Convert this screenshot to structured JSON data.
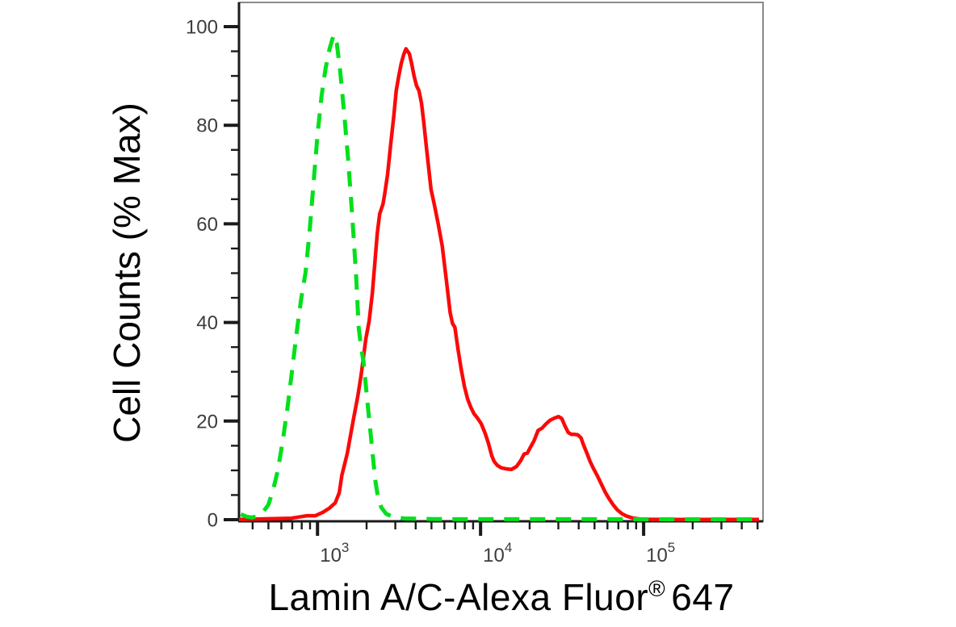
{
  "figure": {
    "background": "#ffffff"
  },
  "colors": {
    "axis": "#1b1b1b",
    "box_border": "#8a8a8a",
    "tick_label": "#3c3c3c",
    "title_text": "#000000",
    "red_series": "#FB0909",
    "green_series": "#00E01C"
  },
  "chart_data": {
    "type": "line",
    "subtype": "flow-cytometry-overlay-histogram",
    "title": "",
    "xlabel": {
      "pre": "Lamin A/C-Alexa Fluor",
      "sup": "®",
      "post": "647"
    },
    "ylabel": "Cell Counts (% Max)",
    "grid": false,
    "legend": false,
    "x_axis": {
      "scale": "log10",
      "min": 330,
      "max": 540000,
      "major_ticks": [
        {
          "value": 1000,
          "label_base": "10",
          "label_exp": "3"
        },
        {
          "value": 10000,
          "label_base": "10",
          "label_exp": "4"
        },
        {
          "value": 100000,
          "label_base": "10",
          "label_exp": "5"
        }
      ],
      "minor_tick_multiples": [
        2,
        3,
        4,
        5,
        6,
        7,
        8,
        9
      ]
    },
    "y_axis": {
      "min": 0,
      "max": 100,
      "major_ticks": [
        0,
        20,
        40,
        60,
        80,
        100
      ],
      "minor_tick_step": 5
    },
    "series": [
      {
        "name": "red-solid-lamin-ac-stained",
        "color": "#FB0909",
        "line_style": "solid",
        "line_width": 4.5,
        "points": [
          [
            330,
            0.05
          ],
          [
            690,
            0.3
          ],
          [
            790,
            0.6
          ],
          [
            860,
            0.8
          ],
          [
            970,
            0.8
          ],
          [
            1080,
            1.5
          ],
          [
            1180,
            2.3
          ],
          [
            1285,
            3.4
          ],
          [
            1360,
            5.5
          ],
          [
            1410,
            9
          ],
          [
            1525,
            13.5
          ],
          [
            1650,
            19.8
          ],
          [
            1770,
            25.2
          ],
          [
            1850,
            29.3
          ],
          [
            1915,
            33
          ],
          [
            1980,
            36.7
          ],
          [
            2075,
            40.3
          ],
          [
            2170,
            46
          ],
          [
            2245,
            52
          ],
          [
            2325,
            58
          ],
          [
            2405,
            62
          ],
          [
            2520,
            64
          ],
          [
            2580,
            66
          ],
          [
            2690,
            70
          ],
          [
            2810,
            76
          ],
          [
            2940,
            82
          ],
          [
            3040,
            87
          ],
          [
            3150,
            90
          ],
          [
            3260,
            92.5
          ],
          [
            3375,
            94.3
          ],
          [
            3490,
            95.5
          ],
          [
            3660,
            94.5
          ],
          [
            3780,
            92.5
          ],
          [
            3910,
            90
          ],
          [
            4050,
            88
          ],
          [
            4190,
            87
          ],
          [
            4340,
            84.5
          ],
          [
            4490,
            80.5
          ],
          [
            4640,
            76
          ],
          [
            4800,
            71.5
          ],
          [
            4970,
            67
          ],
          [
            5200,
            64
          ],
          [
            5500,
            60
          ],
          [
            5820,
            55.5
          ],
          [
            6150,
            49
          ],
          [
            6510,
            42
          ],
          [
            6730,
            39.8
          ],
          [
            6960,
            39
          ],
          [
            7280,
            34.5
          ],
          [
            7610,
            30.5
          ],
          [
            7960,
            27
          ],
          [
            8330,
            24.5
          ],
          [
            8710,
            22.8
          ],
          [
            9110,
            21.5
          ],
          [
            9530,
            20.7
          ],
          [
            10080,
            19.5
          ],
          [
            10670,
            17.5
          ],
          [
            11180,
            15.5
          ],
          [
            11710,
            13
          ],
          [
            12120,
            11.8
          ],
          [
            12690,
            11
          ],
          [
            13420,
            10.5
          ],
          [
            14420,
            10.3
          ],
          [
            15490,
            10.2
          ],
          [
            16640,
            10.8
          ],
          [
            17650,
            12
          ],
          [
            18490,
            13.3
          ],
          [
            19370,
            13.5
          ],
          [
            20300,
            14.8
          ],
          [
            21270,
            16
          ],
          [
            22530,
            18.1
          ],
          [
            23880,
            18.6
          ],
          [
            25300,
            19.5
          ],
          [
            26800,
            20.2
          ],
          [
            28400,
            20.6
          ],
          [
            30090,
            20.9
          ],
          [
            31490,
            20.5
          ],
          [
            32950,
            19
          ],
          [
            34480,
            17.7
          ],
          [
            36080,
            17.3
          ],
          [
            37750,
            17.3
          ],
          [
            39500,
            17.2
          ],
          [
            41340,
            16.6
          ],
          [
            42770,
            15.2
          ],
          [
            44760,
            13.6
          ],
          [
            46830,
            11.9
          ],
          [
            49010,
            10.5
          ],
          [
            51870,
            9
          ],
          [
            54910,
            7.3
          ],
          [
            58120,
            5.6
          ],
          [
            61530,
            4.2
          ],
          [
            65130,
            3
          ],
          [
            68940,
            2
          ],
          [
            73760,
            1.2
          ],
          [
            78930,
            0.7
          ],
          [
            85400,
            0.35
          ],
          [
            94200,
            0.15
          ],
          [
            103100,
            0.08
          ],
          [
            130000,
            0.05
          ],
          [
            510000,
            0.05
          ]
        ]
      },
      {
        "name": "green-dashed-control",
        "color": "#00E01C",
        "line_style": "dashed",
        "line_width": 5,
        "dash_pattern": [
          19,
          13
        ],
        "points": [
          [
            339,
            1.1
          ],
          [
            367,
            0.6
          ],
          [
            397,
            0.45
          ],
          [
            425,
            0.7
          ],
          [
            460,
            1.4
          ],
          [
            499,
            3
          ],
          [
            534,
            6
          ],
          [
            571,
            10
          ],
          [
            612,
            16
          ],
          [
            656,
            23
          ],
          [
            703,
            31
          ],
          [
            752,
            39
          ],
          [
            796,
            45
          ],
          [
            843,
            50
          ],
          [
            892,
            58
          ],
          [
            944,
            68
          ],
          [
            1000,
            78
          ],
          [
            1059,
            86
          ],
          [
            1121,
            91.5
          ],
          [
            1186,
            95.5
          ],
          [
            1256,
            98.3
          ],
          [
            1315,
            96.5
          ],
          [
            1377,
            91
          ],
          [
            1456,
            82.5
          ],
          [
            1542,
            73
          ],
          [
            1614,
            64
          ],
          [
            1671,
            56.5
          ],
          [
            1729,
            49
          ],
          [
            1789,
            39
          ],
          [
            1850,
            35
          ],
          [
            1914,
            32
          ],
          [
            1982,
            27
          ],
          [
            2050,
            22
          ],
          [
            2123,
            17
          ],
          [
            2198,
            12
          ],
          [
            2272,
            7.5
          ],
          [
            2351,
            4.5
          ],
          [
            2460,
            2.5
          ],
          [
            2636,
            1.2
          ],
          [
            2884,
            0.6
          ],
          [
            3388,
            0.25
          ],
          [
            5345,
            0.12
          ],
          [
            30000,
            0.1
          ],
          [
            510000,
            0.08
          ]
        ]
      }
    ]
  }
}
